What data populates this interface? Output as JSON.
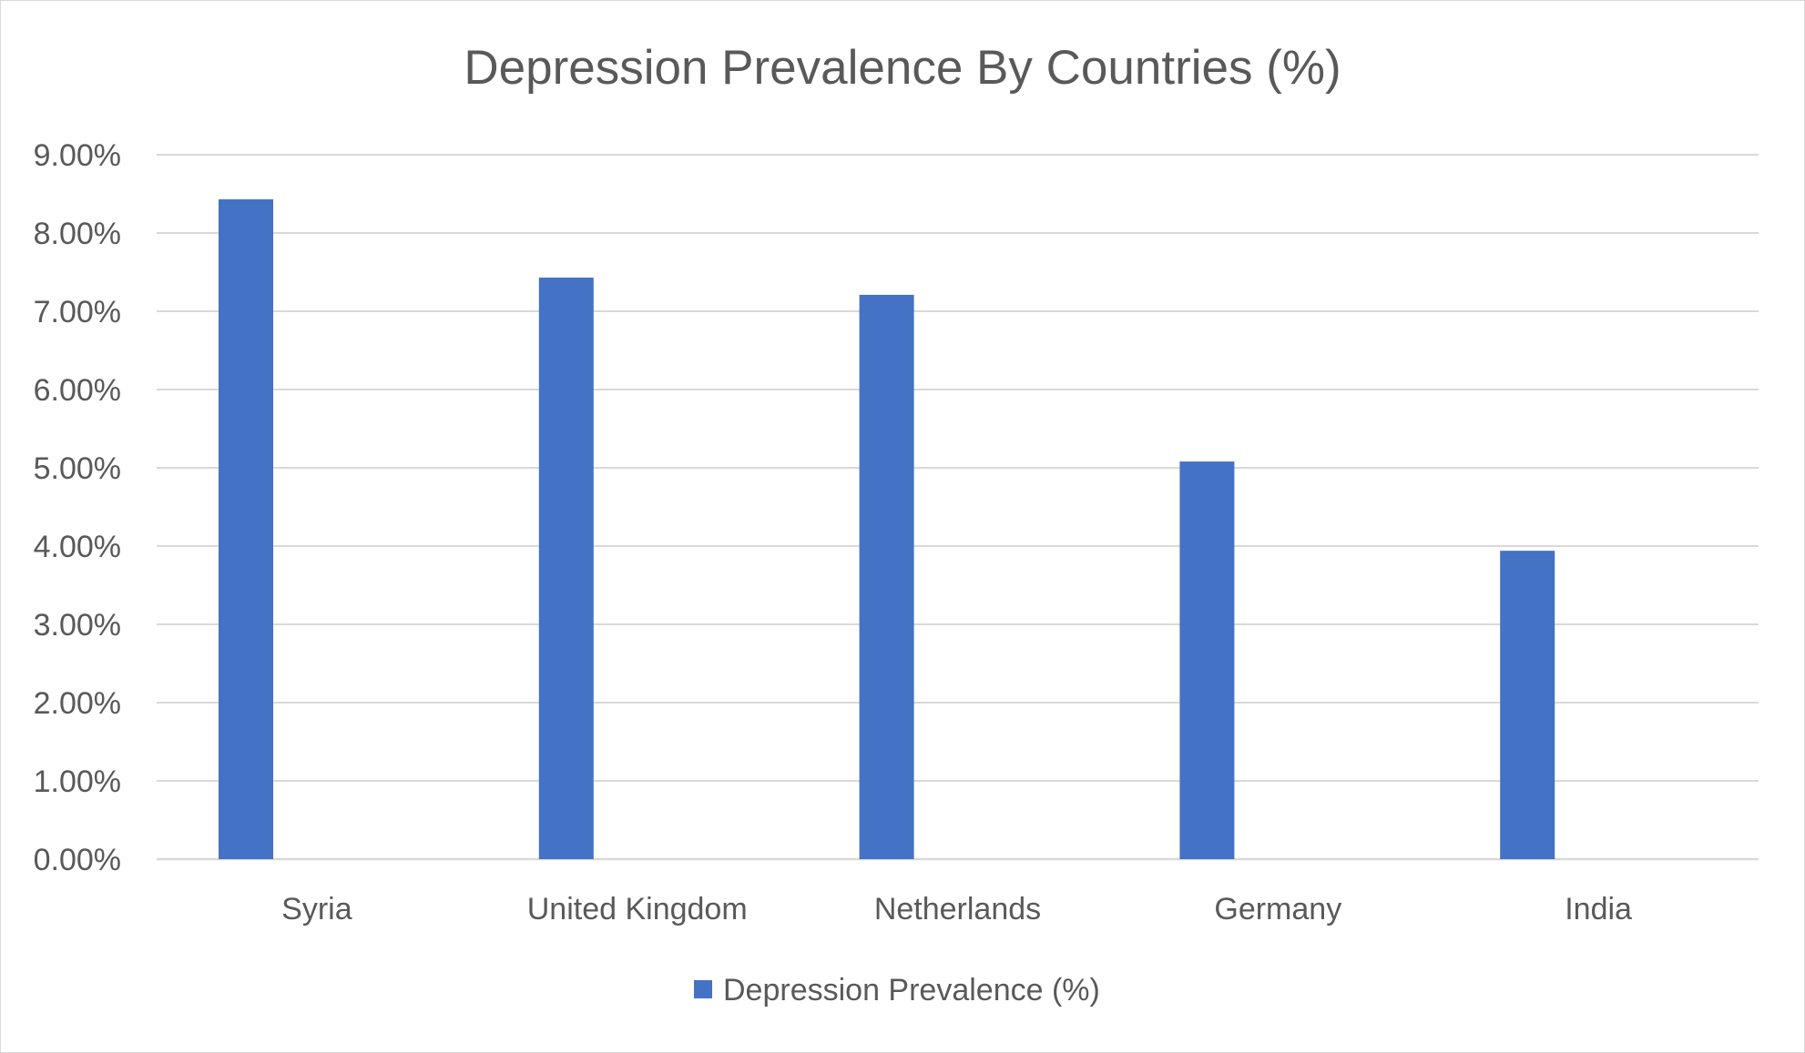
{
  "chart_data": {
    "type": "bar",
    "title": "Depression Prevalence By Countries (%)",
    "xlabel": "",
    "ylabel": "",
    "categories": [
      "Syria",
      "United Kingdom",
      "Netherlands",
      "Germany",
      "India"
    ],
    "series": [
      {
        "name": "Depression Prevalence (%)",
        "values": [
          8.43,
          7.43,
          7.21,
          5.08,
          3.94
        ],
        "color": "#4472c4"
      }
    ],
    "ylim": [
      0,
      9
    ],
    "y_ticks": [
      "0.00%",
      "1.00%",
      "2.00%",
      "3.00%",
      "4.00%",
      "5.00%",
      "6.00%",
      "7.00%",
      "8.00%",
      "9.00%"
    ],
    "grid": true,
    "legend": "bottom",
    "colors": {
      "bar": "#4472c4",
      "grid": "#d9d9d9",
      "text": "#595959"
    }
  }
}
